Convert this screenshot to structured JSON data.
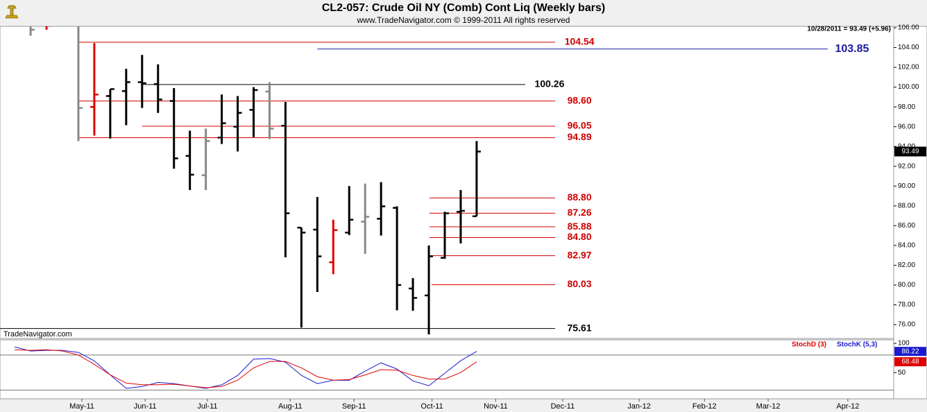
{
  "title": "CL2-057:  Crude Oil NY (Comb) Cont Liq  (Weekly bars)",
  "subtitle": "www.TradeNavigator.com © 1999-2011 All rights reserved",
  "watermark": "TradeNavigator.com",
  "last_quote": "10/28/2011 = 93.49 (+5.96)",
  "chart_data": [
    {
      "type": "ohlc",
      "xlim": [
        -1.92,
        54.18
      ],
      "ylim": [
        74.6,
        106.14
      ],
      "yticks": [
        {
          "value": 76,
          "label": "76.00"
        },
        {
          "value": 78,
          "label": "78.00"
        },
        {
          "value": 80,
          "label": "80.00"
        },
        {
          "value": 82,
          "label": "82.00"
        },
        {
          "value": 84,
          "label": "84.00"
        },
        {
          "value": 86,
          "label": "86.00"
        },
        {
          "value": 88,
          "label": "88.00"
        },
        {
          "value": 90,
          "label": "90.00"
        },
        {
          "value": 92,
          "label": "92.00"
        },
        {
          "value": 94,
          "label": "94.00"
        },
        {
          "value": 96,
          "label": "96.00"
        },
        {
          "value": 98,
          "label": "98.00"
        },
        {
          "value": 100,
          "label": "100.00"
        },
        {
          "value": 102,
          "label": "102.00"
        },
        {
          "value": 104,
          "label": "104.00"
        },
        {
          "value": 106,
          "label": "106.00"
        }
      ],
      "xticks": [
        {
          "value": 3.22,
          "label": "May-11"
        },
        {
          "value": 7.19,
          "label": "Jun-11"
        },
        {
          "value": 11.1,
          "label": "Jul-11"
        },
        {
          "value": 16.3,
          "label": "Aug-11"
        },
        {
          "value": 20.3,
          "label": "Sep-11"
        },
        {
          "value": 25.2,
          "label": "Oct-11"
        },
        {
          "value": 29.2,
          "label": "Nov-11"
        },
        {
          "value": 33.4,
          "label": "Dec-11"
        },
        {
          "value": 38.2,
          "label": "Jan-12"
        },
        {
          "value": 42.3,
          "label": "Feb-12"
        },
        {
          "value": 46.3,
          "label": "Mar-12"
        },
        {
          "value": 51.3,
          "label": "Apr-12"
        }
      ],
      "x": [
        0,
        1,
        3,
        4,
        5,
        6,
        7,
        8,
        9,
        10,
        11,
        12,
        13,
        14,
        15,
        16,
        17,
        18,
        19,
        20,
        21,
        22,
        23,
        24,
        25,
        26,
        27,
        28
      ],
      "open": [
        106.5,
        107,
        107,
        98,
        99.1,
        99.6,
        100.5,
        100.3,
        98.6,
        93.05,
        91.1,
        94.9,
        96,
        97.7,
        99.55,
        96.1,
        85.8,
        85.6,
        82.3,
        85.3,
        86.4,
        86.7,
        87.8,
        79.65,
        78.95,
        82.75,
        87.4,
        86.95
      ],
      "high": [
        107.5,
        107.5,
        108,
        104.45,
        99.8,
        101.85,
        103.25,
        102.3,
        99.9,
        95.6,
        95.8,
        99.25,
        99.1,
        100,
        100.5,
        98.5,
        85.8,
        88.9,
        86.6,
        90,
        90.25,
        90.4,
        87.95,
        80.7,
        84,
        87.4,
        89.6,
        94.55
      ],
      "low": [
        105.2,
        105.8,
        94.55,
        95.1,
        94.8,
        96.15,
        97.9,
        97.4,
        91.75,
        89.6,
        89.6,
        94.25,
        93.5,
        94.95,
        94.75,
        82.8,
        75.7,
        79.3,
        81.1,
        85.05,
        83.15,
        85,
        77.45,
        77.4,
        75,
        82.65,
        84.2,
        86.95
      ],
      "close": [
        105.8,
        106.2,
        97.9,
        99.25,
        99.8,
        100.5,
        100.4,
        98.75,
        92.8,
        91.15,
        94.55,
        96.35,
        97.4,
        99.7,
        95.8,
        87.25,
        85.3,
        82.9,
        85.55,
        86.6,
        86.9,
        87.95,
        80,
        78.7,
        82.9,
        87.25,
        87.5,
        93.49
      ],
      "colors": [
        "#888888",
        "#e00000",
        "#888888",
        "#e00000",
        "#000000",
        "#000000",
        "#000000",
        "#000000",
        "#000000",
        "#000000",
        "#888888",
        "#000000",
        "#000000",
        "#000000",
        "#888888",
        "#000000",
        "#000000",
        "#000000",
        "#e00000",
        "#000000",
        "#888888",
        "#000000",
        "#000000",
        "#000000",
        "#000000",
        "#000000",
        "#000000",
        "#000000"
      ],
      "levels": [
        {
          "value": 104.54,
          "color": "#d00000",
          "start": 3,
          "end": 32.93
        },
        {
          "value": 103.85,
          "color": "#1a1aa0",
          "start": 18,
          "end": 50.04
        },
        {
          "value": 100.26,
          "color": "#000000",
          "start": 7,
          "end": 31.05
        },
        {
          "value": 98.6,
          "label": "98.60",
          "color": "#d00000",
          "start": 3,
          "end": 32.93
        },
        {
          "value": 96.05,
          "color": "#d00000",
          "start": 7,
          "end": 32.93
        },
        {
          "value": 94.89,
          "color": "#d00000",
          "start": 3,
          "end": 32.93
        },
        {
          "value": 88.8,
          "label": "88.80",
          "color": "#d00000",
          "start": 25.04,
          "end": 32.93
        },
        {
          "value": 87.26,
          "color": "#d00000",
          "start": 25.04,
          "end": 32.93
        },
        {
          "value": 85.88,
          "color": "#d00000",
          "start": 25.04,
          "end": 32.93
        },
        {
          "value": 84.8,
          "label": "84.80",
          "color": "#d00000",
          "start": 25.04,
          "end": 32.93
        },
        {
          "value": 82.97,
          "color": "#d00000",
          "start": 25.04,
          "end": 32.93
        },
        {
          "value": 80.03,
          "color": "#d00000",
          "start": 25.17,
          "end": 32.93
        },
        {
          "value": 75.61,
          "color": "#000000",
          "start": -1.92,
          "end": 32.93
        }
      ]
    },
    {
      "type": "line",
      "xlim": [
        -1.92,
        54.18
      ],
      "ylim": [
        5,
        106
      ],
      "yticks": [
        100,
        50
      ],
      "hlines": [
        80,
        20
      ],
      "x": [
        -1,
        0,
        1,
        2,
        3,
        4,
        5,
        6,
        7,
        8,
        9,
        10,
        11,
        12,
        13,
        14,
        15,
        16,
        17,
        18,
        19,
        20,
        21,
        22,
        23,
        24,
        25,
        26,
        27,
        28
      ],
      "series": [
        {
          "name": "StochK (5,3)",
          "color": "#1a1ad0",
          "values": [
            94,
            86.9,
            88.1,
            88,
            84.5,
            70,
            46,
            23,
            26,
            33,
            31,
            27,
            23,
            29,
            45,
            73,
            74,
            67.9,
            45.2,
            31,
            36.9,
            36.9,
            52.4,
            66.7,
            56,
            35.7,
            27.4,
            48.8,
            70.2,
            86.22
          ]
        },
        {
          "name": "StochD (3)",
          "color": "#e00000",
          "values": [
            89,
            88,
            89,
            87,
            80,
            64,
            46,
            32,
            29,
            29,
            30,
            27,
            24,
            26,
            37,
            58,
            69,
            69,
            58,
            43,
            37,
            38,
            46,
            55,
            54,
            45,
            39,
            39,
            50,
            68.48
          ]
        }
      ]
    }
  ]
}
